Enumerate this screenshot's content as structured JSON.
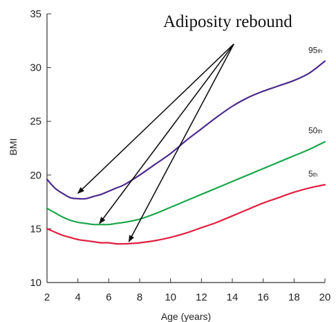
{
  "chart_data": {
    "type": "line",
    "annotation": "Adiposity rebound",
    "xlabel": "Age (years)",
    "ylabel": "BMI",
    "xlim": [
      2,
      20
    ],
    "ylim": [
      10,
      35
    ],
    "xticks": [
      2,
      4,
      6,
      8,
      10,
      12,
      14,
      16,
      18,
      20
    ],
    "yticks": [
      10,
      15,
      20,
      25,
      30,
      35
    ],
    "grid": false,
    "series": [
      {
        "name": "95th",
        "label_main": "95",
        "label_sup": "th",
        "color": "#4b2a8c",
        "x": [
          2,
          2.5,
          3,
          3.5,
          4,
          4.5,
          5,
          5.5,
          6,
          6.5,
          7,
          8,
          9,
          10,
          11,
          12,
          13,
          14,
          15,
          16,
          17,
          18,
          19,
          20
        ],
        "y": [
          19.6,
          18.8,
          18.3,
          17.9,
          17.8,
          17.8,
          18.0,
          18.2,
          18.5,
          18.8,
          19.1,
          20.0,
          21.0,
          22.0,
          23.2,
          24.3,
          25.4,
          26.4,
          27.2,
          27.8,
          28.3,
          28.8,
          29.5,
          30.6
        ]
      },
      {
        "name": "50th",
        "label_main": "50",
        "label_sup": "th",
        "color": "#1aa64a",
        "x": [
          2,
          2.5,
          3,
          3.5,
          4,
          4.5,
          5,
          5.5,
          6,
          6.5,
          7,
          8,
          9,
          10,
          11,
          12,
          13,
          14,
          15,
          16,
          17,
          18,
          19,
          20
        ],
        "y": [
          16.9,
          16.5,
          16.1,
          15.8,
          15.6,
          15.5,
          15.4,
          15.4,
          15.4,
          15.5,
          15.6,
          15.9,
          16.4,
          17.0,
          17.6,
          18.2,
          18.8,
          19.4,
          20.0,
          20.6,
          21.2,
          21.8,
          22.4,
          23.1
        ]
      },
      {
        "name": "5th",
        "label_main": "5",
        "label_sup": "th",
        "color": "#e01f3f",
        "x": [
          2,
          2.5,
          3,
          3.5,
          4,
          4.5,
          5,
          5.5,
          6,
          6.5,
          7,
          8,
          9,
          10,
          11,
          12,
          13,
          14,
          15,
          16,
          17,
          18,
          19,
          20
        ],
        "y": [
          15.0,
          14.7,
          14.4,
          14.2,
          14.0,
          13.9,
          13.8,
          13.7,
          13.7,
          13.6,
          13.6,
          13.7,
          13.9,
          14.2,
          14.6,
          15.1,
          15.6,
          16.2,
          16.8,
          17.4,
          17.9,
          18.4,
          18.8,
          19.1
        ]
      }
    ],
    "arrows": {
      "from": {
        "x": 14.1,
        "y": 32.2
      },
      "to": [
        {
          "x": 4.0,
          "y": 18.3
        },
        {
          "x": 5.4,
          "y": 15.5
        },
        {
          "x": 7.3,
          "y": 13.8
        }
      ]
    }
  }
}
